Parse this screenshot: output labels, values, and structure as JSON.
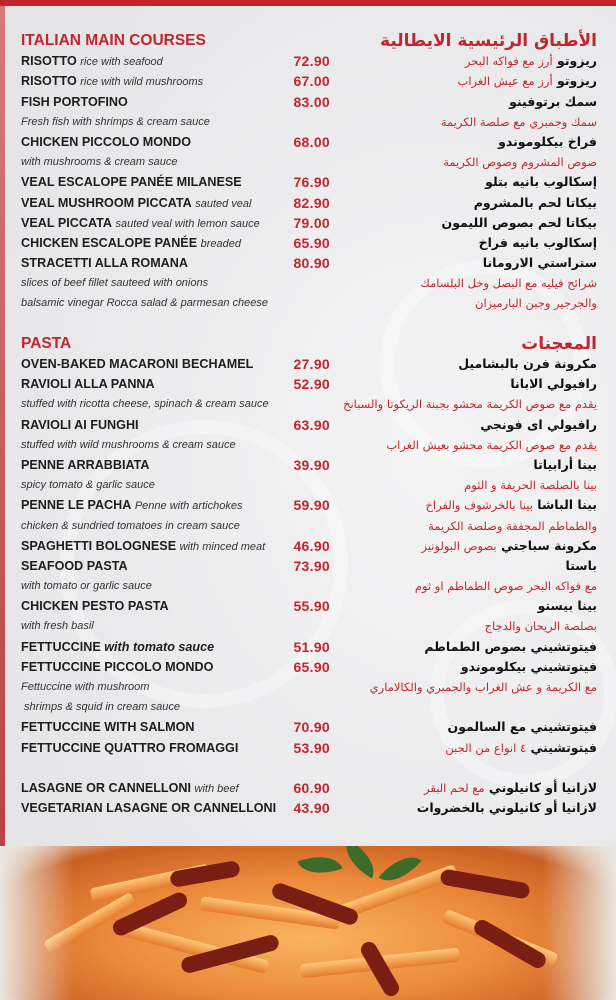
{
  "colors": {
    "accent": "#c0272d",
    "text": "#1e1e1e",
    "background": "#ececee"
  },
  "main_courses": {
    "title_en": "ITALIAN MAIN COURSES",
    "title_ar": "الأطباق الرئيسية الايطالية",
    "rows": [
      {
        "name": "RISOTTO",
        "desc": "rice with seafood",
        "price": "72.90",
        "ar_name": "ريزوتو",
        "ar_desc": "أرز مع فواكه البحر"
      },
      {
        "name": "RISOTTO",
        "desc": "rice with wild mushrooms",
        "price": "67.00",
        "ar_name": "ريزوتو",
        "ar_desc": "أرز مع عيش الغراب"
      },
      {
        "name": "FISH PORTOFINO",
        "price": "83.00",
        "ar_name": "سمك برتوفينو"
      },
      {
        "note": "Fresh fish with shrimps & cream sauce",
        "ar_note": "سمك وجمبري مع صلصة الكريمة"
      },
      {
        "name": "CHICKEN PICCOLO MONDO",
        "price": "68.00",
        "ar_name": "فراخ بيكلوموندو"
      },
      {
        "note": "with mushrooms & cream sauce",
        "ar_note": "صوص المشروم وصوص الكريمة"
      },
      {
        "name": "VEAL ESCALOPE PANÉE MILANESE",
        "price": "76.90",
        "ar_name": "إسكالوب بانيه بتلو"
      },
      {
        "name": "VEAL MUSHROOM PICCATA",
        "desc": "sauted veal",
        "price": "82.90",
        "ar_name": "بيكاتا لحم بالمشروم"
      },
      {
        "name": "VEAL PICCATA",
        "desc": "sauted veal with lemon sauce",
        "price": "79.00",
        "ar_name": "بيكاتا لحم بصوص الليمون"
      },
      {
        "name": "CHICKEN ESCALOPE PANÉE",
        "desc": "breaded",
        "price": "65.90",
        "ar_name": "إسكالوب بانيه فراخ"
      },
      {
        "name": "STRACETTI ALLA ROMANA",
        "price": "80.90",
        "ar_name": "ستراستي الارومانا"
      },
      {
        "note": "slices of beef fillet sauteed with onions",
        "ar_note": "شرائح فيليه مع البصل وخل البلسامك"
      },
      {
        "note": "balsamic vinegar Rocca salad & parmesan cheese",
        "ar_note": "والجرجير وجبن البارميزان"
      }
    ]
  },
  "pasta": {
    "title_en": "PASTA",
    "title_ar": "المعجنات",
    "rows": [
      {
        "name": "OVEN-BAKED MACARONI BECHAMEL",
        "price": "27.90",
        "ar_name": "مكرونة فرن بالبشاميل"
      },
      {
        "name": "RAVIOLI ALLA PANNA",
        "price": "52.90",
        "ar_name": "رافيولي الابانا"
      },
      {
        "note": "stuffed with ricotta cheese, spinach & cream sauce",
        "ar_note": "يقدم مع صوص الكريمة محشو بجبنة الريكوتا والسبانخ"
      },
      {
        "name": "RAVIOLI AI FUNGHI",
        "price": "63.90",
        "ar_name": "رافيولي اى فونجي"
      },
      {
        "note": "stuffed with wild mushrooms & cream sauce",
        "ar_note": "يقدم مع صوص الكريمة محشو بعيش الغراب"
      },
      {
        "name": "PENNE ARRABBIATA",
        "price": "39.90",
        "ar_name": "بينا أرابياتا"
      },
      {
        "note": "spicy tomato & garlic sauce",
        "ar_note": "بينا بالصلصة الحريفة و الثوم"
      },
      {
        "name": "PENNE LE PACHA",
        "desc": "Penne with artichokes",
        "price": "59.90",
        "ar_name": "بينا الباشا",
        "ar_desc": "بينا بالخرشوف والفراخ"
      },
      {
        "note": "chicken & sundried tomatoes in cream sauce",
        "ar_note": "والطماطم المجففة وصلصة الكريمة"
      },
      {
        "name": "SPAGHETTI BOLOGNESE",
        "desc": "with minced meat",
        "price": "46.90",
        "ar_name": "مكرونة سباجتي",
        "ar_desc": "بصوص البولونيز"
      },
      {
        "name": "SEAFOOD PASTA",
        "price": "73.90",
        "ar_name": "باستا"
      },
      {
        "note": "with tomato or garlic sauce",
        "ar_note": "مع فواكه البحر صوص الطماطم او ثوم"
      },
      {
        "name": "CHICKEN PESTO PASTA",
        "price": "55.90",
        "ar_name": "بينا بيستو"
      },
      {
        "note": "with fresh basil",
        "ar_note": "بصلصة الريحان والدجاج"
      },
      {
        "name": "FETTUCCINE",
        "desc_big": "with tomato sauce",
        "price": "51.90",
        "ar_name": "فيتوتشيني بصوص الطماطم"
      },
      {
        "name": "FETTUCCINE PICCOLO MONDO",
        "price": "65.90",
        "ar_name": "فيتوتشيني بيكلوموندو"
      },
      {
        "note": "Fettuccine with mushroom",
        "ar_note": "مع الكريمة و عش الغراب والجمبري والكالاماري"
      },
      {
        "note": " shrimps & squid in cream sauce"
      },
      {
        "name": "FETTUCCINE WITH SALMON",
        "price": "70.90",
        "ar_name": "فيتوتشيني مع السالمون"
      },
      {
        "name": "FETTUCCINE QUATTRO FROMAGGI",
        "price": "53.90",
        "ar_name": "فيتوتشيني",
        "ar_desc": "٤ انواع من الجبن"
      },
      {},
      {
        "name": "LASAGNE OR CANNELLONI",
        "desc": "with beef",
        "price": "60.90",
        "ar_name": "لازانيا أو كانيلوني",
        "ar_desc": "مع لحم البقر"
      },
      {
        "name": "VEGETARIAN LASAGNE OR CANNELLONI",
        "price": "43.90",
        "ar_name": "لازانيا أو كانيلوني بالخضروات"
      }
    ]
  },
  "photo": {
    "subject": "penne pasta with sundried tomatoes and basil"
  }
}
